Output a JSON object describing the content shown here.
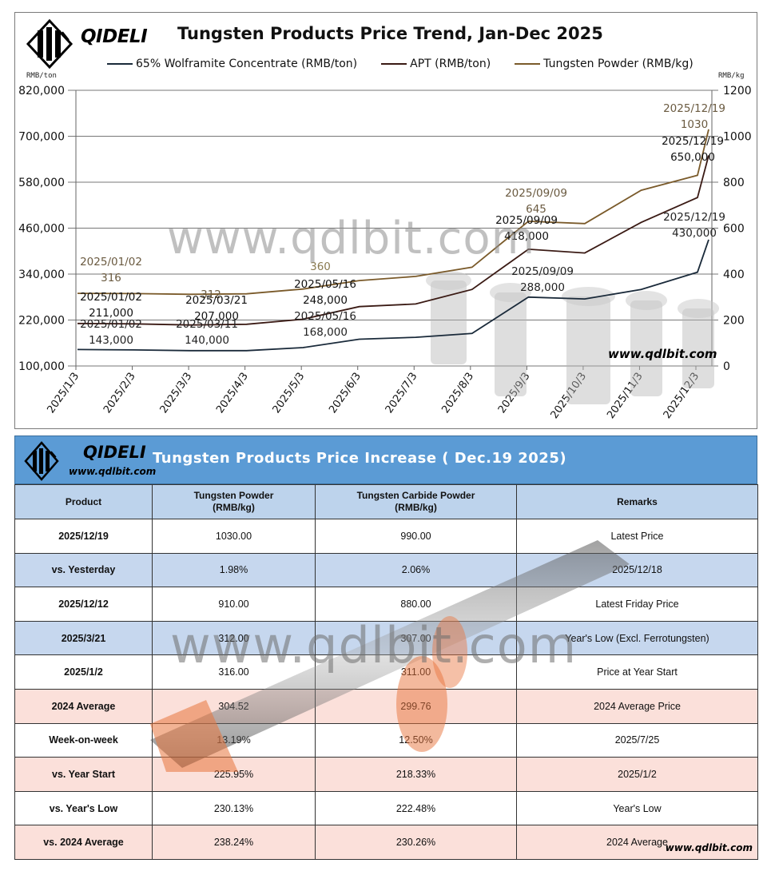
{
  "chart": {
    "brand": "QIDELI",
    "title": "Tungsten Products Price Trend, Jan-Dec 2025",
    "unit_left": "RMB/ton",
    "unit_right": "RMB/kg",
    "watermark": "www.qdlbit.com",
    "site_label": "www.qdlbit.com",
    "legend": [
      {
        "label": "65% Wolframite Concentrate (RMB/ton)",
        "color": "#1a2a3a"
      },
      {
        "label": "APT (RMB/ton)",
        "color": "#3a1a14"
      },
      {
        "label": "Tungsten Powder (RMB/kg)",
        "color": "#7a5a2a"
      }
    ]
  },
  "chart_data": {
    "type": "line",
    "title": "Tungsten Products Price Trend, Jan-Dec 2025",
    "xlabel": "",
    "ylabel": "RMB/ton",
    "y2label": "RMB/kg",
    "ylim": [
      100000,
      820000
    ],
    "y2lim": [
      0,
      1200
    ],
    "yticks": [
      "100,000",
      "220,000",
      "340,000",
      "460,000",
      "580,000",
      "700,000",
      "820,000"
    ],
    "y2ticks": [
      "0",
      "200",
      "400",
      "600",
      "800",
      "1000",
      "1200"
    ],
    "categories": [
      "2025/1/3",
      "2025/2/3",
      "2025/3/3",
      "2025/4/3",
      "2025/5/3",
      "2025/6/3",
      "2025/7/3",
      "2025/8/3",
      "2025/9/3",
      "2025/10/3",
      "2025/11/3",
      "2025/12/3"
    ],
    "grid": true,
    "legend_position": "top",
    "series": [
      {
        "name": "65% Wolframite Concentrate (RMB/ton)",
        "axis": "left",
        "color": "#1a2a3a",
        "values": [
          143000,
          142000,
          140000,
          140000,
          148000,
          170000,
          175000,
          185000,
          280000,
          275000,
          300000,
          345000
        ],
        "end_value": 430000
      },
      {
        "name": "APT (RMB/ton)",
        "axis": "left",
        "color": "#3a1a14",
        "values": [
          211000,
          210000,
          207000,
          209000,
          222000,
          255000,
          262000,
          300000,
          405000,
          395000,
          475000,
          540000
        ],
        "end_value": 650000
      },
      {
        "name": "Tungsten Powder (RMB/kg)",
        "axis": "right",
        "color": "#7a5a2a",
        "values": [
          316,
          315,
          312,
          314,
          335,
          372,
          390,
          430,
          630,
          620,
          765,
          830
        ],
        "end_value": 1030
      }
    ],
    "annotations": [
      {
        "series": "Tungsten Powder",
        "date": "2025/01/02",
        "value": "316"
      },
      {
        "series": "Tungsten Powder",
        "date": "",
        "value": "312"
      },
      {
        "series": "Tungsten Powder",
        "date": "",
        "value": "360"
      },
      {
        "series": "Tungsten Powder",
        "date": "2025/09/09",
        "value": "645"
      },
      {
        "series": "Tungsten Powder",
        "date": "2025/12/19",
        "value": "1030"
      },
      {
        "series": "APT",
        "date": "2025/01/02",
        "value": "211,000"
      },
      {
        "series": "APT",
        "date": "2025/03/21",
        "value": "207,000"
      },
      {
        "series": "APT",
        "date": "2025/05/16",
        "value": "248,000"
      },
      {
        "series": "APT",
        "date": "2025/09/09",
        "value": "418,000"
      },
      {
        "series": "APT",
        "date": "2025/12/19",
        "value": "650,000"
      },
      {
        "series": "65% Wolframite Concentrate",
        "date": "2025/01/02",
        "value": "143,000"
      },
      {
        "series": "65% Wolframite Concentrate",
        "date": "2025/03/11",
        "value": "140,000"
      },
      {
        "series": "65% Wolframite Concentrate",
        "date": "2025/05/16",
        "value": "168,000"
      },
      {
        "series": "65% Wolframite Concentrate",
        "date": "2025/09/09",
        "value": "288,000"
      },
      {
        "series": "65% Wolframite Concentrate",
        "date": "2025/12/19",
        "value": "430,000"
      }
    ]
  },
  "table": {
    "brand": "QIDELI",
    "site": "www.qdlbit.com",
    "title": "Tungsten Products Price Increase ( Dec.19 2025)",
    "watermark": "www.qdlbit.com",
    "headers": [
      "Product",
      "Tungsten Powder (RMB/kg)",
      "Tungsten Carbide Powder (RMB/kg)",
      "Remarks"
    ],
    "header_lines": [
      [
        "Product",
        ""
      ],
      [
        "Tungsten Powder",
        "(RMB/kg)"
      ],
      [
        "Tungsten Carbide Powder",
        "(RMB/kg)"
      ],
      [
        "Remarks",
        ""
      ]
    ],
    "rows": [
      {
        "product": "2025/12/19",
        "powder": "1030.00",
        "carbide": "990.00",
        "remarks": "Latest Price",
        "style": "white"
      },
      {
        "product": "vs. Yesterday",
        "powder": "1.98%",
        "carbide": "2.06%",
        "remarks": "2025/12/18",
        "style": "blue"
      },
      {
        "product": "2025/12/12",
        "powder": "910.00",
        "carbide": "880.00",
        "remarks": "Latest Friday Price",
        "style": "white"
      },
      {
        "product": "2025/3/21",
        "powder": "312.00",
        "carbide": "307.00",
        "remarks": "Year's Low (Excl. Ferrotungsten)",
        "style": "blue"
      },
      {
        "product": "2025/1/2",
        "powder": "316.00",
        "carbide": "311.00",
        "remarks": "Price at Year Start",
        "style": "white"
      },
      {
        "product": "2024 Average",
        "powder": "304.52",
        "carbide": "299.76",
        "remarks": "2024 Average Price",
        "style": "pink"
      },
      {
        "product": "Week-on-week",
        "powder": "13.19%",
        "carbide": "12.50%",
        "remarks": "2025/7/25",
        "style": "white"
      },
      {
        "product": "vs. Year Start",
        "powder": "225.95%",
        "carbide": "218.33%",
        "remarks": "2025/1/2",
        "style": "pink"
      },
      {
        "product": "vs. Year's Low",
        "powder": "230.13%",
        "carbide": "222.48%",
        "remarks": "Year's Low",
        "style": "white"
      },
      {
        "product": "vs. 2024 Average",
        "powder": "238.24%",
        "carbide": "230.26%",
        "remarks": "2024 Average",
        "style": "pink"
      }
    ]
  }
}
